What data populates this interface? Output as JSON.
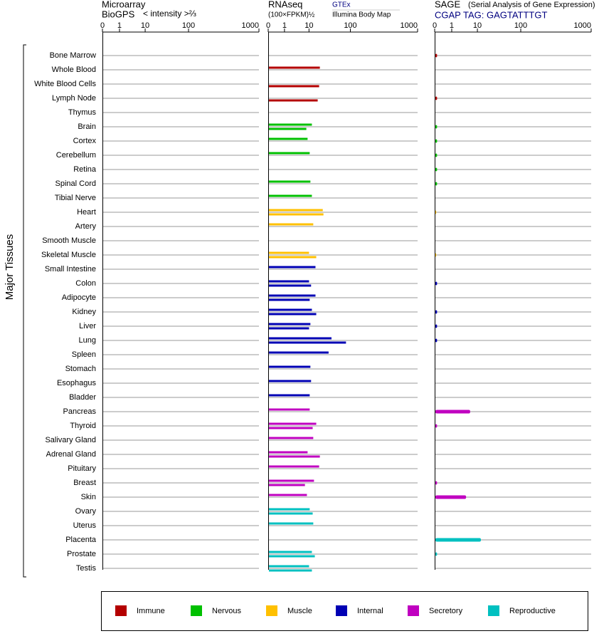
{
  "chart_data": {
    "type": "bar",
    "axis_label": "Major Tissues",
    "categories": [
      "Bone Marrow",
      "Whole Blood",
      "White Blood Cells",
      "Lymph Node",
      "Thymus",
      "Brain",
      "Cortex",
      "Cerebellum",
      "Retina",
      "Spinal Cord",
      "Tibial Nerve",
      "Heart",
      "Artery",
      "Smooth Muscle",
      "Skeletal Muscle",
      "Small Intestine",
      "Colon",
      "Adipocyte",
      "Kidney",
      "Liver",
      "Lung",
      "Spleen",
      "Stomach",
      "Esophagus",
      "Bladder",
      "Pancreas",
      "Thyroid",
      "Salivary Gland",
      "Adrenal Gland",
      "Pituitary",
      "Breast",
      "Skin",
      "Ovary",
      "Uterus",
      "Placenta",
      "Prostate",
      "Testis"
    ],
    "category_group": [
      0,
      0,
      0,
      0,
      0,
      1,
      1,
      1,
      1,
      1,
      1,
      2,
      2,
      2,
      2,
      3,
      3,
      3,
      3,
      3,
      3,
      3,
      3,
      3,
      3,
      4,
      4,
      4,
      4,
      4,
      4,
      4,
      5,
      5,
      5,
      5,
      5
    ],
    "groups": [
      {
        "name": "Immune",
        "color": "#b40000"
      },
      {
        "name": "Nervous",
        "color": "#00c000"
      },
      {
        "name": "Muscle",
        "color": "#ffc000"
      },
      {
        "name": "Internal",
        "color": "#0000b4"
      },
      {
        "name": "Secretory",
        "color": "#c000c0"
      },
      {
        "name": "Reproductive",
        "color": "#00c0c0"
      }
    ],
    "panels": [
      {
        "title": "Microarray",
        "source": "BioGPS",
        "subtitle": "< intensity >⅔",
        "xlim": [
          0,
          1000
        ],
        "xticks": [
          0,
          1,
          10,
          100,
          1000
        ],
        "series": []
      },
      {
        "title": "RNAseq",
        "subtitle": "(100×FPKM)½",
        "xlim": [
          0,
          1000
        ],
        "xticks": [
          0,
          1,
          10,
          100,
          1000
        ],
        "series": [
          {
            "name": "GTEx",
            "values": [
              null,
              17.6,
              null,
              null,
              null,
              11.3,
              8.2,
              10,
              null,
              10.4,
              11.3,
              20.7,
              12.2,
              null,
              9.4,
              13.8,
              9.4,
              13.8,
              11.3,
              10.4,
              33.6,
              28.6,
              10.4,
              10.8,
              10,
              10,
              14.4,
              12.2,
              8.2,
              16.9,
              12.7,
              7.7,
              10,
              12.2,
              null,
              11.3,
              9.4
            ]
          },
          {
            "name": "Illumina Body Map",
            "values": [
              null,
              null,
              16.9,
              15.6,
              null,
              7.3,
              null,
              null,
              null,
              null,
              null,
              21.5,
              null,
              null,
              14.4,
              null,
              10.8,
              10,
              14.4,
              9.4,
              75.3,
              null,
              null,
              null,
              null,
              null,
              11.8,
              null,
              17.6,
              null,
              6.4,
              null,
              11.8,
              null,
              null,
              13.3,
              11.3
            ]
          }
        ]
      },
      {
        "title": "SAGE",
        "source": "(Serial Analysis of Gene Expression)",
        "subtitle": "CGAP TAG: GAGTATTTGT",
        "xlim": [
          0,
          1000
        ],
        "xticks": [
          0,
          1,
          10,
          100,
          1000
        ],
        "series": [
          {
            "values": [
              0.1,
              null,
              null,
              0.1,
              null,
              0.1,
              0.1,
              0.1,
              0.1,
              0.1,
              null,
              0.05,
              null,
              null,
              0.05,
              null,
              0.1,
              null,
              0.1,
              0.1,
              0.1,
              null,
              null,
              null,
              null,
              4.9,
              0.1,
              null,
              null,
              null,
              0.1,
              3.4,
              null,
              null,
              11.6,
              0.1,
              null
            ]
          }
        ]
      }
    ]
  }
}
